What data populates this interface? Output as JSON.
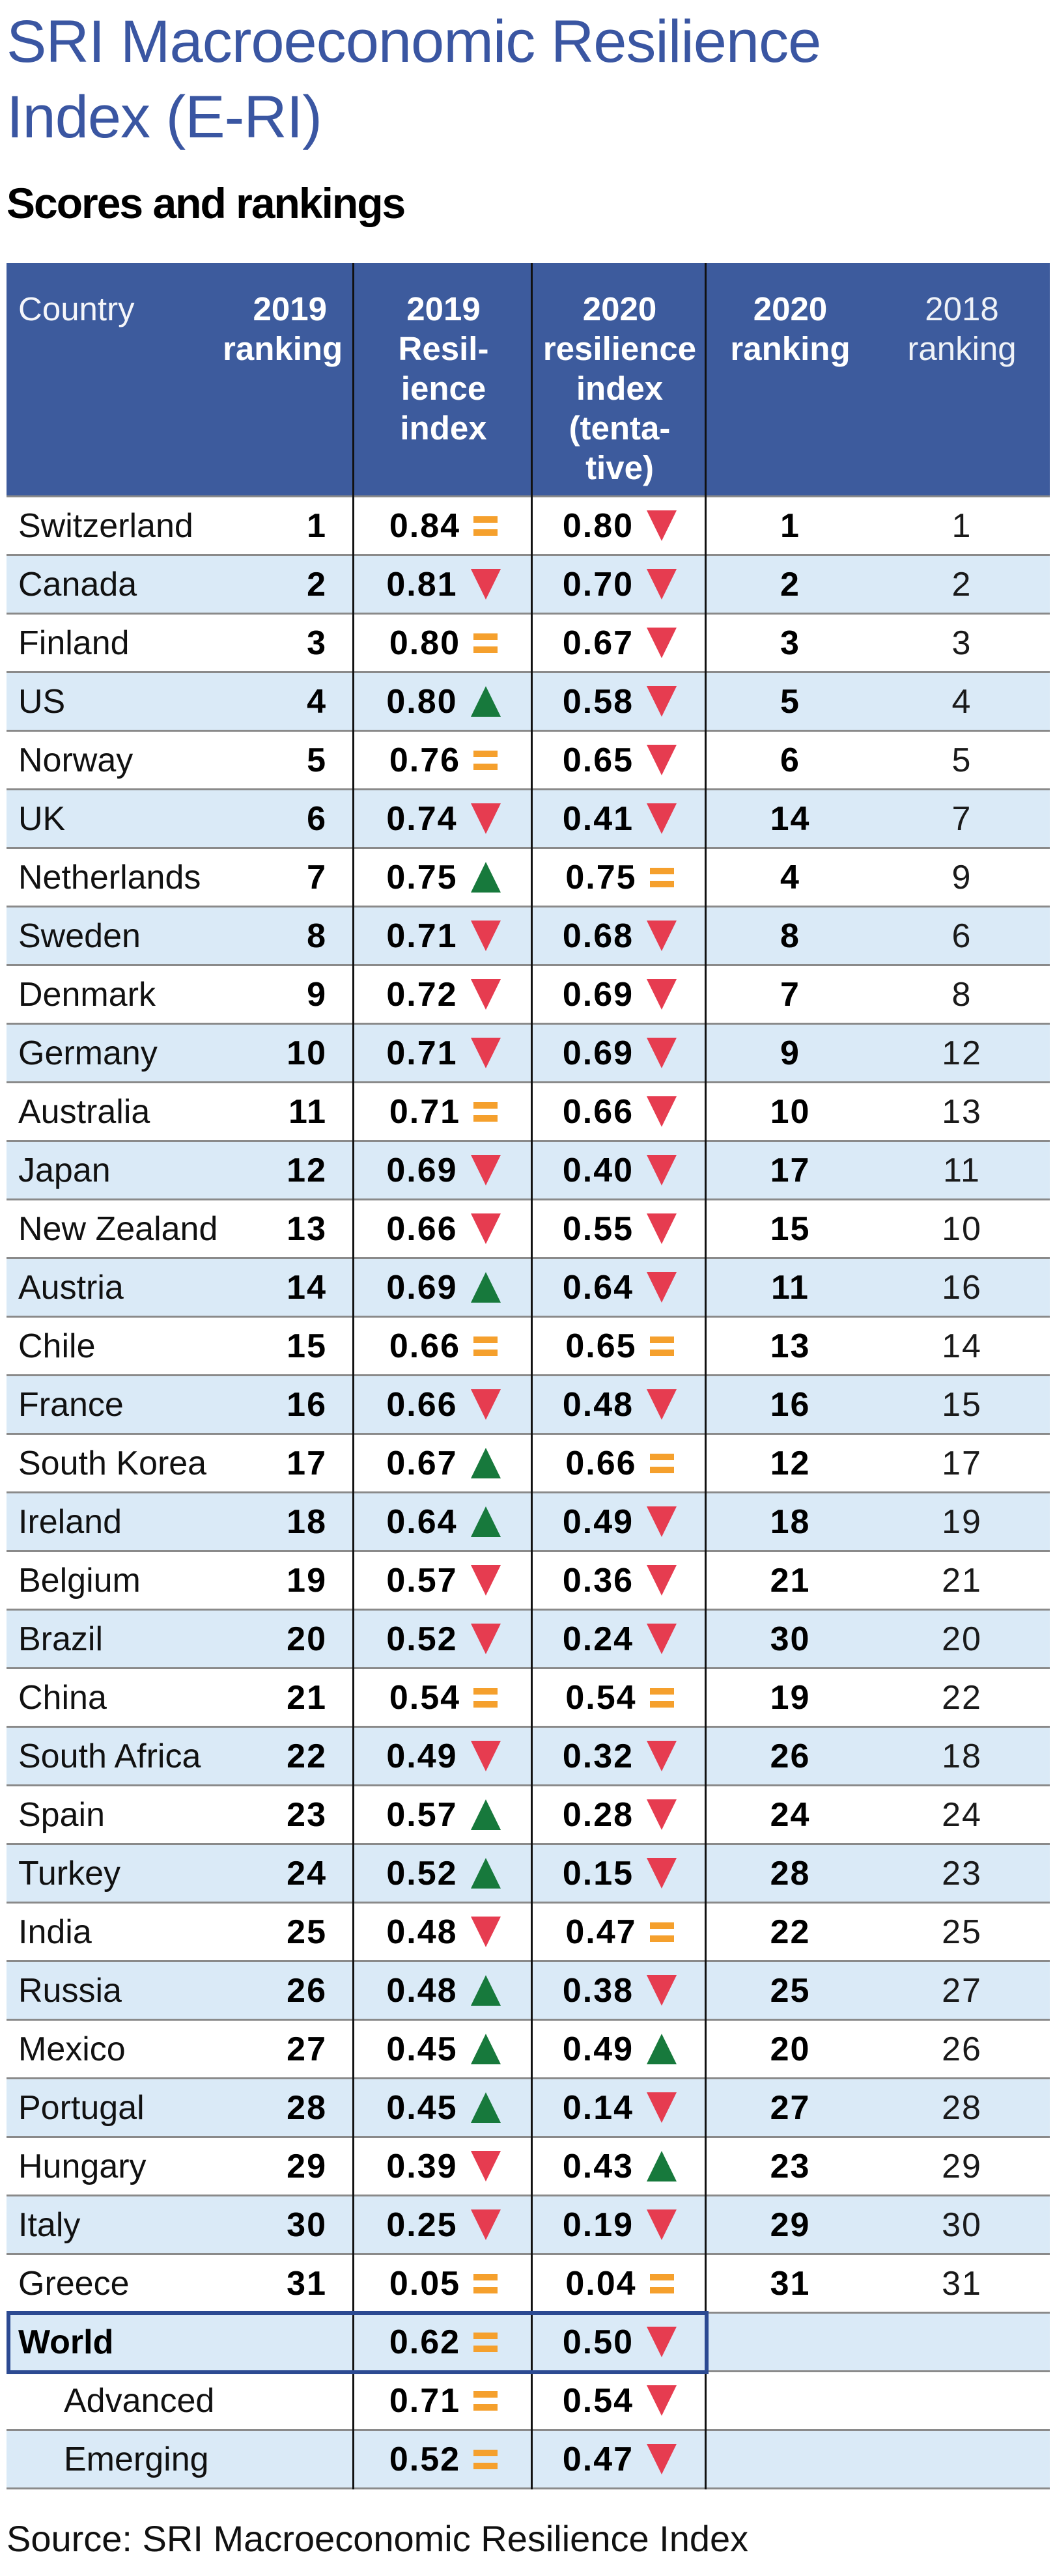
{
  "title": "SRI Macroeconomic Resilience Index (E-RI)",
  "subtitle": "Scores and rankings",
  "source": "Source: SRI Macroeconomic Resilience Index",
  "header": {
    "country": "Country",
    "ranking_2019": "2019\nranking",
    "index_2019": "2019\nResil-\nience\nindex",
    "index_2020": "2020\nresilience\nindex\n(tenta-\ntive)",
    "ranking_2020": "2020\nranking",
    "ranking_2018": "2018\nranking"
  },
  "colors": {
    "title_blue": "#3a56a2",
    "header_bg": "#3d5b9d",
    "header_text": "#ffffff",
    "row_stripe_blue": "#daeaf7",
    "row_white": "#ffffff",
    "separator_gray": "#8a8a8a",
    "column_line_black": "#111111",
    "trend_up_green": "#17793c",
    "trend_down_red": "#e63c50",
    "trend_same_orange": "#f5a02d",
    "world_box_border": "#2c4a92"
  },
  "chart_data": {
    "type": "table",
    "title": "SRI Macroeconomic Resilience Index (E-RI)",
    "subtitle": "Scores and rankings",
    "columns": [
      "Country",
      "2019 ranking",
      "2019 Resilience index",
      "2019 trend",
      "2020 resilience index (tentative)",
      "2020 trend",
      "2020 ranking",
      "2018 ranking"
    ],
    "trend_legend": {
      "up": "green up arrow",
      "down": "red down arrow",
      "same": "orange equals sign"
    },
    "rows": [
      {
        "country": "Switzerland",
        "ranking_2019": "1",
        "index_2019": "0.84",
        "trend_2019": "same",
        "index_2020": "0.80",
        "trend_2020": "down",
        "ranking_2020": "1",
        "ranking_2018": "1",
        "emphasis": false,
        "indent": false
      },
      {
        "country": "Canada",
        "ranking_2019": "2",
        "index_2019": "0.81",
        "trend_2019": "down",
        "index_2020": "0.70",
        "trend_2020": "down",
        "ranking_2020": "2",
        "ranking_2018": "2",
        "emphasis": false,
        "indent": false
      },
      {
        "country": "Finland",
        "ranking_2019": "3",
        "index_2019": "0.80",
        "trend_2019": "same",
        "index_2020": "0.67",
        "trend_2020": "down",
        "ranking_2020": "3",
        "ranking_2018": "3",
        "emphasis": false,
        "indent": false
      },
      {
        "country": "US",
        "ranking_2019": "4",
        "index_2019": "0.80",
        "trend_2019": "up",
        "index_2020": "0.58",
        "trend_2020": "down",
        "ranking_2020": "5",
        "ranking_2018": "4",
        "emphasis": false,
        "indent": false
      },
      {
        "country": "Norway",
        "ranking_2019": "5",
        "index_2019": "0.76",
        "trend_2019": "same",
        "index_2020": "0.65",
        "trend_2020": "down",
        "ranking_2020": "6",
        "ranking_2018": "5",
        "emphasis": false,
        "indent": false
      },
      {
        "country": "UK",
        "ranking_2019": "6",
        "index_2019": "0.74",
        "trend_2019": "down",
        "index_2020": "0.41",
        "trend_2020": "down",
        "ranking_2020": "14",
        "ranking_2018": "7",
        "emphasis": false,
        "indent": false
      },
      {
        "country": "Netherlands",
        "ranking_2019": "7",
        "index_2019": "0.75",
        "trend_2019": "up",
        "index_2020": "0.75",
        "trend_2020": "same",
        "ranking_2020": "4",
        "ranking_2018": "9",
        "emphasis": false,
        "indent": false
      },
      {
        "country": "Sweden",
        "ranking_2019": "8",
        "index_2019": "0.71",
        "trend_2019": "down",
        "index_2020": "0.68",
        "trend_2020": "down",
        "ranking_2020": "8",
        "ranking_2018": "6",
        "emphasis": false,
        "indent": false
      },
      {
        "country": "Denmark",
        "ranking_2019": "9",
        "index_2019": "0.72",
        "trend_2019": "down",
        "index_2020": "0.69",
        "trend_2020": "down",
        "ranking_2020": "7",
        "ranking_2018": "8",
        "emphasis": false,
        "indent": false
      },
      {
        "country": "Germany",
        "ranking_2019": "10",
        "index_2019": "0.71",
        "trend_2019": "down",
        "index_2020": "0.69",
        "trend_2020": "down",
        "ranking_2020": "9",
        "ranking_2018": "12",
        "emphasis": false,
        "indent": false
      },
      {
        "country": "Australia",
        "ranking_2019": "11",
        "index_2019": "0.71",
        "trend_2019": "same",
        "index_2020": "0.66",
        "trend_2020": "down",
        "ranking_2020": "10",
        "ranking_2018": "13",
        "emphasis": false,
        "indent": false
      },
      {
        "country": "Japan",
        "ranking_2019": "12",
        "index_2019": "0.69",
        "trend_2019": "down",
        "index_2020": "0.40",
        "trend_2020": "down",
        "ranking_2020": "17",
        "ranking_2018": "11",
        "emphasis": false,
        "indent": false
      },
      {
        "country": "New Zealand",
        "ranking_2019": "13",
        "index_2019": "0.66",
        "trend_2019": "down",
        "index_2020": "0.55",
        "trend_2020": "down",
        "ranking_2020": "15",
        "ranking_2018": "10",
        "emphasis": false,
        "indent": false
      },
      {
        "country": "Austria",
        "ranking_2019": "14",
        "index_2019": "0.69",
        "trend_2019": "up",
        "index_2020": "0.64",
        "trend_2020": "down",
        "ranking_2020": "11",
        "ranking_2018": "16",
        "emphasis": false,
        "indent": false
      },
      {
        "country": "Chile",
        "ranking_2019": "15",
        "index_2019": "0.66",
        "trend_2019": "same",
        "index_2020": "0.65",
        "trend_2020": "same",
        "ranking_2020": "13",
        "ranking_2018": "14",
        "emphasis": false,
        "indent": false
      },
      {
        "country": "France",
        "ranking_2019": "16",
        "index_2019": "0.66",
        "trend_2019": "down",
        "index_2020": "0.48",
        "trend_2020": "down",
        "ranking_2020": "16",
        "ranking_2018": "15",
        "emphasis": false,
        "indent": false
      },
      {
        "country": "South Korea",
        "ranking_2019": "17",
        "index_2019": "0.67",
        "trend_2019": "up",
        "index_2020": "0.66",
        "trend_2020": "same",
        "ranking_2020": "12",
        "ranking_2018": "17",
        "emphasis": false,
        "indent": false
      },
      {
        "country": "Ireland",
        "ranking_2019": "18",
        "index_2019": "0.64",
        "trend_2019": "up",
        "index_2020": "0.49",
        "trend_2020": "down",
        "ranking_2020": "18",
        "ranking_2018": "19",
        "emphasis": false,
        "indent": false
      },
      {
        "country": "Belgium",
        "ranking_2019": "19",
        "index_2019": "0.57",
        "trend_2019": "down",
        "index_2020": "0.36",
        "trend_2020": "down",
        "ranking_2020": "21",
        "ranking_2018": "21",
        "emphasis": false,
        "indent": false
      },
      {
        "country": "Brazil",
        "ranking_2019": "20",
        "index_2019": "0.52",
        "trend_2019": "down",
        "index_2020": "0.24",
        "trend_2020": "down",
        "ranking_2020": "30",
        "ranking_2018": "20",
        "emphasis": false,
        "indent": false
      },
      {
        "country": "China",
        "ranking_2019": "21",
        "index_2019": "0.54",
        "trend_2019": "same",
        "index_2020": "0.54",
        "trend_2020": "same",
        "ranking_2020": "19",
        "ranking_2018": "22",
        "emphasis": false,
        "indent": false
      },
      {
        "country": "South Africa",
        "ranking_2019": "22",
        "index_2019": "0.49",
        "trend_2019": "down",
        "index_2020": "0.32",
        "trend_2020": "down",
        "ranking_2020": "26",
        "ranking_2018": "18",
        "emphasis": false,
        "indent": false
      },
      {
        "country": "Spain",
        "ranking_2019": "23",
        "index_2019": "0.57",
        "trend_2019": "up",
        "index_2020": "0.28",
        "trend_2020": "down",
        "ranking_2020": "24",
        "ranking_2018": "24",
        "emphasis": false,
        "indent": false
      },
      {
        "country": "Turkey",
        "ranking_2019": "24",
        "index_2019": "0.52",
        "trend_2019": "up",
        "index_2020": "0.15",
        "trend_2020": "down",
        "ranking_2020": "28",
        "ranking_2018": "23",
        "emphasis": false,
        "indent": false
      },
      {
        "country": "India",
        "ranking_2019": "25",
        "index_2019": "0.48",
        "trend_2019": "down",
        "index_2020": "0.47",
        "trend_2020": "same",
        "ranking_2020": "22",
        "ranking_2018": "25",
        "emphasis": false,
        "indent": false
      },
      {
        "country": "Russia",
        "ranking_2019": "26",
        "index_2019": "0.48",
        "trend_2019": "up",
        "index_2020": "0.38",
        "trend_2020": "down",
        "ranking_2020": "25",
        "ranking_2018": "27",
        "emphasis": false,
        "indent": false
      },
      {
        "country": "Mexico",
        "ranking_2019": "27",
        "index_2019": "0.45",
        "trend_2019": "up",
        "index_2020": "0.49",
        "trend_2020": "up",
        "ranking_2020": "20",
        "ranking_2018": "26",
        "emphasis": false,
        "indent": false
      },
      {
        "country": "Portugal",
        "ranking_2019": "28",
        "index_2019": "0.45",
        "trend_2019": "up",
        "index_2020": "0.14",
        "trend_2020": "down",
        "ranking_2020": "27",
        "ranking_2018": "28",
        "emphasis": false,
        "indent": false
      },
      {
        "country": "Hungary",
        "ranking_2019": "29",
        "index_2019": "0.39",
        "trend_2019": "down",
        "index_2020": "0.43",
        "trend_2020": "up",
        "ranking_2020": "23",
        "ranking_2018": "29",
        "emphasis": false,
        "indent": false
      },
      {
        "country": "Italy",
        "ranking_2019": "30",
        "index_2019": "0.25",
        "trend_2019": "down",
        "index_2020": "0.19",
        "trend_2020": "down",
        "ranking_2020": "29",
        "ranking_2018": "30",
        "emphasis": false,
        "indent": false
      },
      {
        "country": "Greece",
        "ranking_2019": "31",
        "index_2019": "0.05",
        "trend_2019": "same",
        "index_2020": "0.04",
        "trend_2020": "same",
        "ranking_2020": "31",
        "ranking_2018": "31",
        "emphasis": false,
        "indent": false
      },
      {
        "country": "World",
        "ranking_2019": "",
        "index_2019": "0.62",
        "trend_2019": "same",
        "index_2020": "0.50",
        "trend_2020": "down",
        "ranking_2020": "",
        "ranking_2018": "",
        "emphasis": true,
        "indent": false
      },
      {
        "country": "Advanced",
        "ranking_2019": "",
        "index_2019": "0.71",
        "trend_2019": "same",
        "index_2020": "0.54",
        "trend_2020": "down",
        "ranking_2020": "",
        "ranking_2018": "",
        "emphasis": false,
        "indent": true
      },
      {
        "country": "Emerging",
        "ranking_2019": "",
        "index_2019": "0.52",
        "trend_2019": "same",
        "index_2020": "0.47",
        "trend_2020": "down",
        "ranking_2020": "",
        "ranking_2018": "",
        "emphasis": false,
        "indent": true
      }
    ]
  }
}
